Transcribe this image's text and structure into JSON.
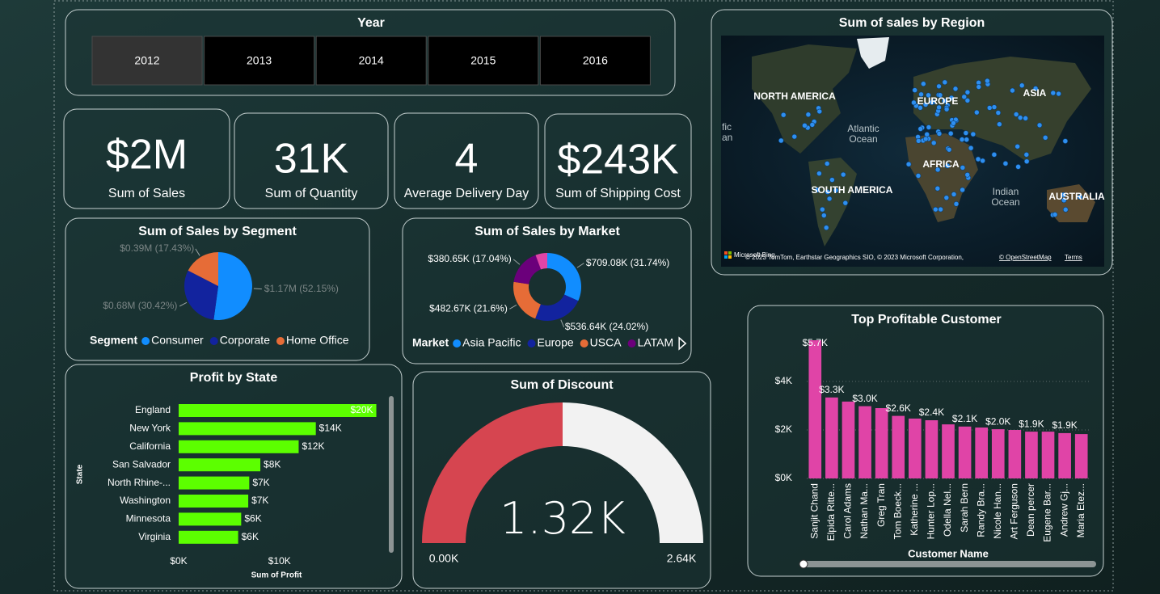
{
  "slicer": {
    "title": "Year",
    "options": [
      "2012",
      "2013",
      "2014",
      "2015",
      "2016"
    ],
    "selected": "2012"
  },
  "kpis": [
    {
      "value": "$2M",
      "label": "Sum of Sales"
    },
    {
      "value": "31K",
      "label": "Sum of Quantity"
    },
    {
      "value": "4",
      "label": "Average Delivery Day"
    },
    {
      "value": "$243K",
      "label": "Sum of Shipping Cost"
    }
  ],
  "map": {
    "title": "Sum of sales by Region",
    "labels": [
      "NORTH AMERICA",
      "EUROPE",
      "ASIA",
      "Atlantic",
      "Ocean",
      "AFRICA",
      "SOUTH AMERICA",
      "Indian",
      "Ocean",
      "AUSTRALIA",
      "fic",
      "an"
    ],
    "logo": "Microsoft Bing",
    "attribution": "© 2023 TomTom, Earthstar Geographics SIO, © 2023 Microsoft Corporation,",
    "osm": "© OpenStreetMap",
    "terms": "Terms"
  },
  "chart_data": [
    {
      "type": "pie",
      "title": "Sum of Sales by Segment",
      "legend_title": "Segment",
      "categories": [
        "Consumer",
        "Corporate",
        "Home Office"
      ],
      "values": [
        52.15,
        30.42,
        17.43
      ],
      "value_labels": [
        "$1.17M (52.15%)",
        "$0.68M (30.42%)",
        "$0.39M (17.43%)"
      ],
      "colors": [
        "#118dff",
        "#12239e",
        "#e66c37"
      ],
      "donut": false
    },
    {
      "type": "pie",
      "title": "Sum of Sales by Market",
      "legend_title": "Market",
      "categories": [
        "Asia Pacific",
        "Europe",
        "USCA",
        "LATAM",
        null
      ],
      "values": [
        31.74,
        24.02,
        21.6,
        17.04,
        5.6
      ],
      "value_labels": [
        "$709.08K (31.74%)",
        "$536.64K (24.02%)",
        "$482.67K (21.6%)",
        "$380.65K (17.04%)",
        null
      ],
      "colors": [
        "#118dff",
        "#12239e",
        "#e66c37",
        "#6b007b",
        "#e044a7"
      ],
      "donut": true
    },
    {
      "type": "hbar",
      "title": "Profit by State",
      "categories": [
        "England",
        "New York",
        "California",
        "San Salvador",
        "North Rhine-...",
        "Washington",
        "Minnesota",
        "Virginia"
      ],
      "values": [
        19600,
        13600,
        11900,
        8100,
        7000,
        6900,
        6200,
        5900
      ],
      "value_labels": [
        "$20K",
        "$14K",
        "$12K",
        "$8K",
        "$7K",
        "$7K",
        "$6K",
        "$6K"
      ],
      "color": "#5cff00",
      "xlim": [
        0,
        21000
      ],
      "xticks": [
        {
          "value": 0,
          "label": "$0K"
        },
        {
          "value": 10000,
          "label": "$10K"
        }
      ],
      "xlabel": "Sum of Profit",
      "ylabel": "State"
    },
    {
      "type": "gauge",
      "title": "Sum of Discount",
      "value": 1320,
      "value_label": "1.32K",
      "min": 0,
      "min_label": "0.00K",
      "max": 2640,
      "max_label": "2.64K",
      "color": "#d64550",
      "track_color": "#f2f2f2"
    },
    {
      "type": "vbar",
      "title": "Top Profitable Customer",
      "categories": [
        "Sanjit Chand",
        "Elpida Ritte...",
        "Carol Adams",
        "Nathan Ma...",
        "Greg Tran",
        "Tom Boeck...",
        "Katherine ...",
        "Hunter Lop...",
        "Odella Nel...",
        "Sarah Bern",
        "Randy Bra...",
        "Nicole Han...",
        "Art Ferguson",
        "Dean percer",
        "Eugene Bar...",
        "Andrew Gj...",
        "Maria Etez..."
      ],
      "values": [
        5700,
        3340,
        3170,
        2980,
        2900,
        2580,
        2470,
        2400,
        2230,
        2140,
        2100,
        2030,
        2000,
        1930,
        1930,
        1870,
        1830
      ],
      "value_labels": [
        "$5.7K",
        "$3.3K",
        null,
        "$3.0K",
        null,
        "$2.6K",
        null,
        "$2.4K",
        null,
        "$2.1K",
        null,
        "$2.0K",
        null,
        "$1.9K",
        null,
        "$1.9K",
        null
      ],
      "color": "#e044a7",
      "ylim": [
        0,
        6000
      ],
      "yticks": [
        {
          "value": 0,
          "label": "$0K"
        },
        {
          "value": 2000,
          "label": "$2K"
        },
        {
          "value": 4000,
          "label": "$4K"
        }
      ],
      "grid": true,
      "xlabel": "Customer Name"
    }
  ]
}
